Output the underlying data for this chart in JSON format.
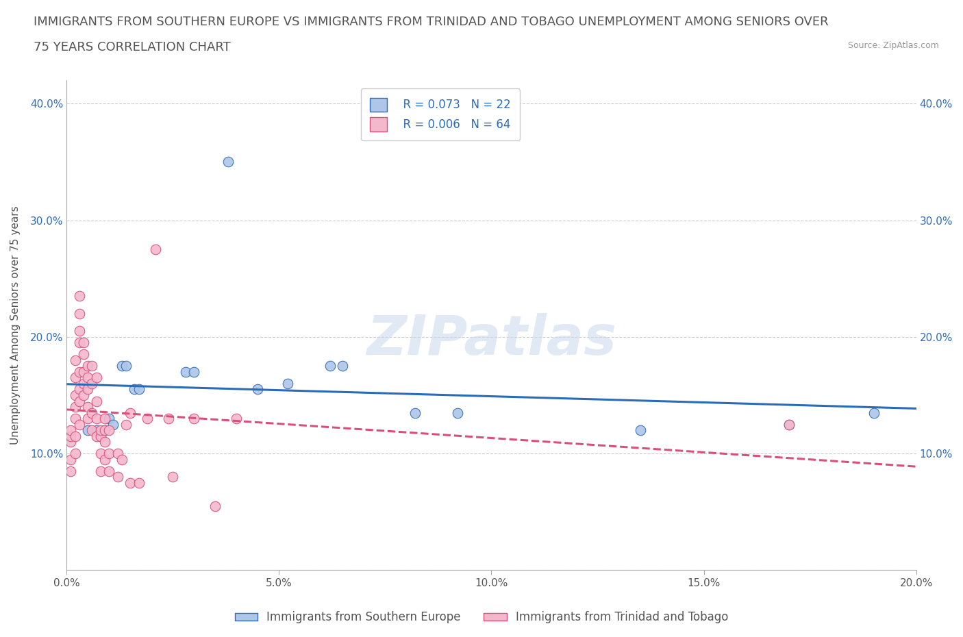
{
  "title_line1": "IMMIGRANTS FROM SOUTHERN EUROPE VS IMMIGRANTS FROM TRINIDAD AND TOBAGO UNEMPLOYMENT AMONG SENIORS OVER",
  "title_line2": "75 YEARS CORRELATION CHART",
  "source_text": "Source: ZipAtlas.com",
  "ylabel": "Unemployment Among Seniors over 75 years",
  "xlim": [
    0.0,
    0.2
  ],
  "ylim": [
    0.0,
    0.42
  ],
  "xticks": [
    0.0,
    0.05,
    0.1,
    0.15,
    0.2
  ],
  "xtick_labels": [
    "0.0%",
    "5.0%",
    "10.0%",
    "15.0%",
    "20.0%"
  ],
  "yticks": [
    0.0,
    0.1,
    0.2,
    0.3,
    0.4
  ],
  "ytick_labels": [
    "",
    "10.0%",
    "20.0%",
    "30.0%",
    "40.0%"
  ],
  "watermark": "ZIPatlas",
  "legend_R1": "R = 0.073",
  "legend_N1": "N = 22",
  "legend_R2": "R = 0.006",
  "legend_N2": "N = 64",
  "blue_color": "#aec6e8",
  "pink_color": "#f4b8cc",
  "blue_line_color": "#2b6cb8",
  "pink_line_color": "#d94f7a",
  "blue_scatter": [
    [
      0.005,
      0.12
    ],
    [
      0.007,
      0.12
    ],
    [
      0.008,
      0.115
    ],
    [
      0.009,
      0.12
    ],
    [
      0.01,
      0.13
    ],
    [
      0.011,
      0.125
    ],
    [
      0.013,
      0.175
    ],
    [
      0.014,
      0.175
    ],
    [
      0.016,
      0.155
    ],
    [
      0.017,
      0.155
    ],
    [
      0.028,
      0.17
    ],
    [
      0.03,
      0.17
    ],
    [
      0.038,
      0.35
    ],
    [
      0.045,
      0.155
    ],
    [
      0.052,
      0.16
    ],
    [
      0.062,
      0.175
    ],
    [
      0.065,
      0.175
    ],
    [
      0.082,
      0.135
    ],
    [
      0.092,
      0.135
    ],
    [
      0.135,
      0.12
    ],
    [
      0.17,
      0.125
    ],
    [
      0.19,
      0.135
    ]
  ],
  "pink_scatter": [
    [
      0.001,
      0.085
    ],
    [
      0.001,
      0.095
    ],
    [
      0.001,
      0.11
    ],
    [
      0.001,
      0.115
    ],
    [
      0.001,
      0.12
    ],
    [
      0.002,
      0.1
    ],
    [
      0.002,
      0.115
    ],
    [
      0.002,
      0.13
    ],
    [
      0.002,
      0.14
    ],
    [
      0.002,
      0.15
    ],
    [
      0.002,
      0.165
    ],
    [
      0.002,
      0.18
    ],
    [
      0.003,
      0.125
    ],
    [
      0.003,
      0.145
    ],
    [
      0.003,
      0.155
    ],
    [
      0.003,
      0.17
    ],
    [
      0.003,
      0.195
    ],
    [
      0.003,
      0.205
    ],
    [
      0.003,
      0.22
    ],
    [
      0.003,
      0.235
    ],
    [
      0.004,
      0.15
    ],
    [
      0.004,
      0.16
    ],
    [
      0.004,
      0.17
    ],
    [
      0.004,
      0.185
    ],
    [
      0.004,
      0.195
    ],
    [
      0.005,
      0.13
    ],
    [
      0.005,
      0.14
    ],
    [
      0.005,
      0.155
    ],
    [
      0.005,
      0.165
    ],
    [
      0.005,
      0.175
    ],
    [
      0.006,
      0.12
    ],
    [
      0.006,
      0.135
    ],
    [
      0.006,
      0.16
    ],
    [
      0.006,
      0.175
    ],
    [
      0.007,
      0.115
    ],
    [
      0.007,
      0.13
    ],
    [
      0.007,
      0.145
    ],
    [
      0.007,
      0.165
    ],
    [
      0.008,
      0.085
    ],
    [
      0.008,
      0.1
    ],
    [
      0.008,
      0.115
    ],
    [
      0.008,
      0.12
    ],
    [
      0.009,
      0.095
    ],
    [
      0.009,
      0.11
    ],
    [
      0.009,
      0.12
    ],
    [
      0.009,
      0.13
    ],
    [
      0.01,
      0.085
    ],
    [
      0.01,
      0.1
    ],
    [
      0.01,
      0.12
    ],
    [
      0.012,
      0.08
    ],
    [
      0.012,
      0.1
    ],
    [
      0.013,
      0.095
    ],
    [
      0.014,
      0.125
    ],
    [
      0.015,
      0.075
    ],
    [
      0.015,
      0.135
    ],
    [
      0.017,
      0.075
    ],
    [
      0.019,
      0.13
    ],
    [
      0.021,
      0.275
    ],
    [
      0.024,
      0.13
    ],
    [
      0.025,
      0.08
    ],
    [
      0.03,
      0.13
    ],
    [
      0.035,
      0.055
    ],
    [
      0.04,
      0.13
    ],
    [
      0.17,
      0.125
    ]
  ],
  "grid_color": "#cccccc",
  "background_color": "#ffffff",
  "title_fontsize": 13,
  "axis_label_fontsize": 11,
  "tick_fontsize": 11,
  "legend_fontsize": 12
}
